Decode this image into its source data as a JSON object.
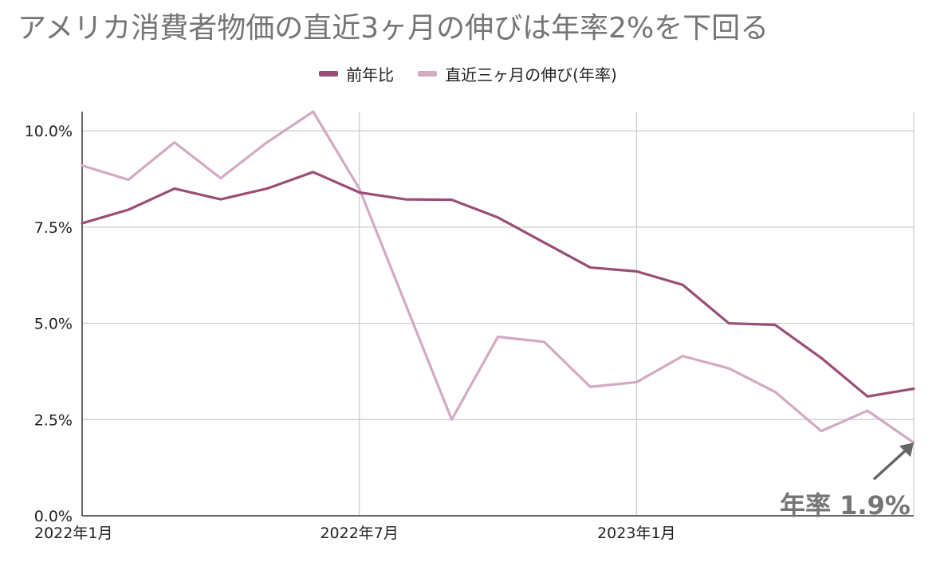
{
  "chart_data": {
    "type": "line",
    "title": "アメリカ消費者物価の直近3ヶ月の伸びは年率2%を下回る",
    "xlabel": "",
    "ylabel": "",
    "ylim": [
      0,
      10.5
    ],
    "yticks": [
      "0.0%",
      "2.5%",
      "5.0%",
      "7.5%",
      "10.0%"
    ],
    "ytick_values": [
      0,
      2.5,
      5,
      7.5,
      10
    ],
    "xticks": [
      {
        "index": 0,
        "label": "2022年1月"
      },
      {
        "index": 6,
        "label": "2022年7月"
      },
      {
        "index": 12,
        "label": "2023年1月"
      }
    ],
    "x": [
      "2022-01",
      "2022-02",
      "2022-03",
      "2022-04",
      "2022-05",
      "2022-06",
      "2022-07",
      "2022-08",
      "2022-09",
      "2022-10",
      "2022-11",
      "2022-12",
      "2023-01",
      "2023-02",
      "2023-03",
      "2023-04",
      "2023-05",
      "2023-06",
      "2023-07"
    ],
    "grid": true,
    "legend_position": "top-center",
    "series": [
      {
        "name": "前年比",
        "color": "#9a4d77",
        "values": [
          7.6,
          7.95,
          8.5,
          8.22,
          8.5,
          8.93,
          8.4,
          8.22,
          8.21,
          7.75,
          7.1,
          6.45,
          6.35,
          6.0,
          5.0,
          4.96,
          4.1,
          3.1,
          3.3
        ]
      },
      {
        "name": "直近三ヶ月の伸び(年率)",
        "color": "#d4a9c2",
        "values": [
          9.1,
          8.73,
          9.7,
          8.77,
          9.7,
          10.5,
          8.5,
          5.5,
          2.5,
          4.65,
          4.52,
          3.35,
          3.47,
          4.15,
          3.83,
          3.22,
          2.2,
          2.73,
          1.9
        ]
      }
    ],
    "annotation": {
      "text": "年率 1.9%",
      "target_index": 18,
      "series": 1
    }
  }
}
